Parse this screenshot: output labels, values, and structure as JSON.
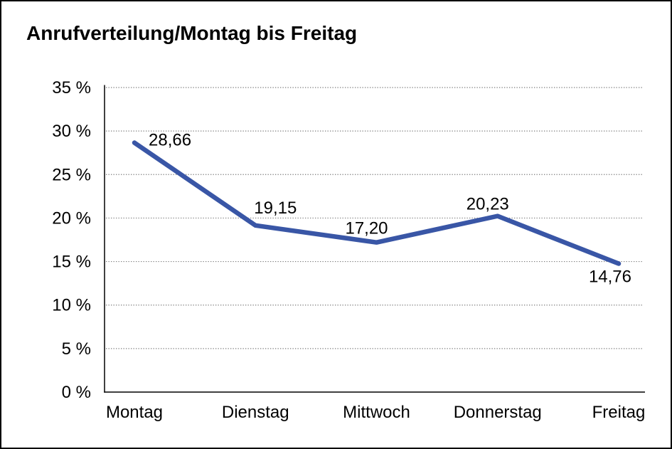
{
  "window": {
    "background": "#ffffff",
    "border_color": "#000000"
  },
  "header": {
    "title": "Anrufverteilung/Montag bis Freitag"
  },
  "chart_data": {
    "type": "line",
    "title": "Anrufverteilung/Montag bis Freitag",
    "categories": [
      "Montag",
      "Dienstag",
      "Mittwoch",
      "Donnerstag",
      "Freitag"
    ],
    "values": [
      28.66,
      19.15,
      17.2,
      20.23,
      14.76
    ],
    "data_labels": [
      "28,66",
      "19,15",
      "17,20",
      "20,23",
      "14,76"
    ],
    "y_tick_labels": [
      "0 %",
      "5 %",
      "10 %",
      "15 %",
      "20 %",
      "25 %",
      "30 %",
      "35 %"
    ],
    "ylim": [
      0,
      35
    ],
    "y_step": 5,
    "xlabel": "",
    "ylabel": "",
    "grid": "horizontal-dotted",
    "legend": "none",
    "line_color": "#3956A6",
    "gridline_color": "#7a7a7a",
    "axis_color": "#000000",
    "text_color": "#000000"
  }
}
